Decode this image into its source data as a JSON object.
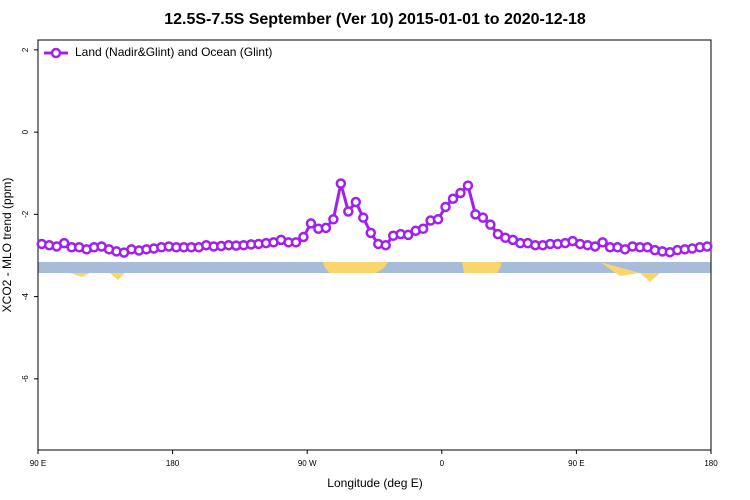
{
  "chart_data": {
    "type": "line",
    "title": "12.5S-7.5S September (Ver 10)   2015-01-01 to 2020-12-18",
    "x_label": "Longitude (deg E)",
    "y_label": "XCO2 - MLO trend (ppm)",
    "xlim": [
      90,
      540
    ],
    "ylim": [
      -7.73,
      2.24
    ],
    "xticks": [
      {
        "value": 90,
        "label": "90 E"
      },
      180,
      {
        "value": 270,
        "label": "90 W"
      },
      {
        "value": 360,
        "label": "0"
      },
      {
        "value": 450,
        "label": "90 E"
      },
      {
        "value": 540,
        "label": "180"
      }
    ],
    "yticks": [
      2,
      0,
      -2,
      -4,
      -6
    ],
    "grid": false,
    "legend": "top-left",
    "x": [
      92.5,
      97.5,
      102.5,
      107.5,
      112.5,
      117.5,
      122.5,
      127.5,
      132.5,
      137.5,
      142.5,
      147.5,
      152.5,
      157.5,
      162.5,
      167.5,
      172.5,
      177.5,
      182.5,
      187.5,
      192.5,
      197.5,
      202.5,
      207.5,
      212.5,
      217.5,
      222.5,
      227.5,
      232.5,
      237.5,
      242.5,
      247.5,
      252.5,
      257.5,
      262.5,
      267.5,
      272.5,
      277.5,
      282.5,
      287.5,
      292.5,
      297.5,
      302.5,
      307.5,
      312.5,
      317.5,
      322.5,
      327.5,
      332.5,
      337.5,
      342.5,
      347.5,
      352.5,
      357.5,
      362.5,
      367.5,
      372.5,
      377.5,
      382.5,
      387.5,
      392.5,
      397.5,
      402.5,
      407.5,
      412.5,
      417.5,
      422.5,
      427.5,
      432.5,
      437.5,
      442.5,
      447.5,
      452.5,
      457.5,
      462.5,
      467.5,
      472.5,
      477.5,
      482.5,
      487.5,
      492.5,
      497.5,
      502.5,
      507.5,
      512.5,
      517.5,
      522.5,
      527.5,
      532.5,
      537.5
    ],
    "series": [
      {
        "name": "Land (Nadir&Glint) and Ocean (Glint)",
        "color": "#a020f0",
        "values": [
          -2.72,
          -2.75,
          -2.78,
          -2.7,
          -2.8,
          -2.8,
          -2.85,
          -2.8,
          -2.78,
          -2.85,
          -2.9,
          -2.93,
          -2.85,
          -2.88,
          -2.85,
          -2.83,
          -2.8,
          -2.78,
          -2.8,
          -2.8,
          -2.8,
          -2.8,
          -2.75,
          -2.78,
          -2.77,
          -2.75,
          -2.76,
          -2.75,
          -2.73,
          -2.72,
          -2.7,
          -2.68,
          -2.62,
          -2.68,
          -2.68,
          -2.55,
          -2.22,
          -2.35,
          -2.33,
          -2.12,
          -1.25,
          -1.93,
          -1.7,
          -2.08,
          -2.45,
          -2.72,
          -2.75,
          -2.52,
          -2.48,
          -2.5,
          -2.4,
          -2.35,
          -2.15,
          -2.12,
          -1.82,
          -1.62,
          -1.48,
          -1.3,
          -2.0,
          -2.08,
          -2.25,
          -2.48,
          -2.57,
          -2.62,
          -2.7,
          -2.7,
          -2.75,
          -2.75,
          -2.72,
          -2.72,
          -2.7,
          -2.65,
          -2.72,
          -2.75,
          -2.78,
          -2.68,
          -2.8,
          -2.8,
          -2.85,
          -2.78,
          -2.8,
          -2.8,
          -2.87,
          -2.9,
          -2.92,
          -2.87,
          -2.85,
          -2.83,
          -2.8,
          -2.78
        ]
      }
    ]
  }
}
